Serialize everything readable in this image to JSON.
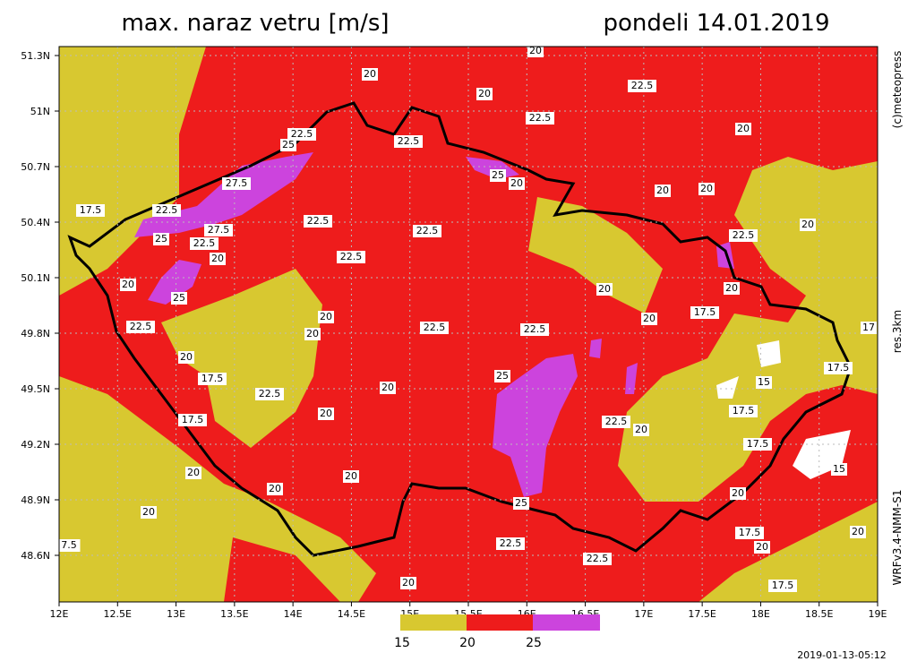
{
  "header": {
    "title": "max. naraz vetru [m/s]",
    "date": "pondeli 14.01.2019"
  },
  "axes": {
    "x_labels": [
      "12E",
      "12.5E",
      "13E",
      "13.5E",
      "14E",
      "14.5E",
      "15E",
      "15.5E",
      "16E",
      "16.5E",
      "17E",
      "17.5E",
      "18E",
      "18.5E",
      "19E"
    ],
    "y_labels": [
      "51.3N",
      "51N",
      "50.7N",
      "50.4N",
      "50.1N",
      "49.8N",
      "49.5N",
      "49.2N",
      "48.9N",
      "48.6N"
    ]
  },
  "side": {
    "copyright": "(c)meteopress",
    "resolution": "res.3km",
    "model": "WRFv3.4-NMM-S1"
  },
  "legend": {
    "labels": [
      "15",
      "20",
      "25"
    ]
  },
  "contour_labels": [
    "20",
    "20",
    "20",
    "22.5",
    "22.5",
    "20",
    "22.5",
    "25",
    "22.5",
    "27.5",
    "25",
    "20",
    "20",
    "20",
    "17.5",
    "22.5",
    "22.5",
    "22.5",
    "27.5",
    "25",
    "22.5",
    "20",
    "22.5",
    "20",
    "22.5",
    "20",
    "25",
    "20",
    "20",
    "17.5",
    "20",
    "20",
    "22.5",
    "20",
    "22.5",
    "22.5",
    "20",
    "17.5",
    "25",
    "17.5",
    "15",
    "22.5",
    "20",
    "17.5",
    "20",
    "22.5",
    "20",
    "17.5",
    "17.5",
    "20",
    "15",
    "20",
    "20",
    "20",
    "20",
    "25",
    "7.5",
    "17.5",
    "20",
    "20",
    "22.5",
    "22.5",
    "20",
    "17.5",
    "17"
  ],
  "footer": {
    "timestamp": "2019-01-13-05:12"
  }
}
